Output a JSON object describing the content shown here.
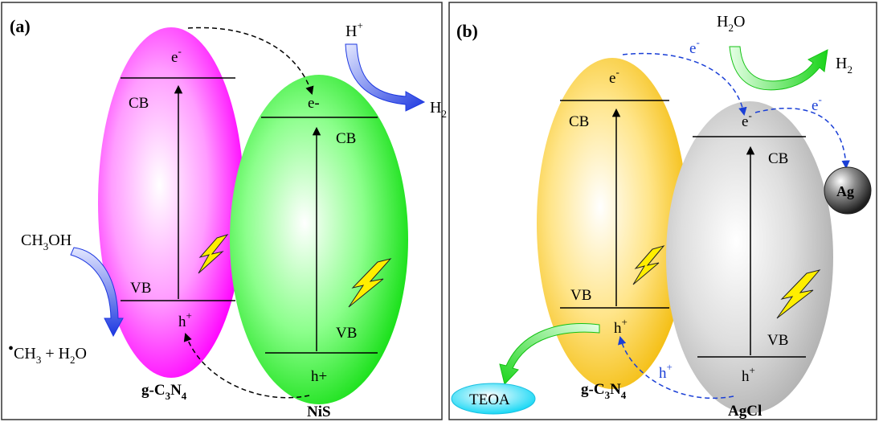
{
  "panel_a": {
    "tag": "(a)",
    "left_sc": {
      "name": "g-C3N4",
      "name_parts": {
        "base": "g-C",
        "sub1": "3",
        "mid": "N",
        "sub2": "4"
      },
      "cb": "CB",
      "vb": "VB",
      "electron": {
        "base": "e",
        "sup": "-"
      },
      "hole": {
        "base": "h",
        "sup": "+"
      },
      "color": "#ff00ff"
    },
    "right_sc": {
      "name": "NiS",
      "cb": "CB",
      "vb": "VB",
      "electron": "e-",
      "hole": "h+",
      "color": "#22ee22"
    },
    "reactant_top": {
      "base": "H",
      "sup": "+"
    },
    "product_top": {
      "base": "H",
      "sub": "2"
    },
    "reactant_left": {
      "p1": "CH",
      "sub": "3",
      "p2": "OH"
    },
    "product_left": {
      "dot": "•",
      "p1": "CH",
      "sub1": "3",
      "p2": " + H",
      "sub2": "2",
      "p3": "O"
    }
  },
  "panel_b": {
    "tag": "(b)",
    "left_sc": {
      "name": "g-C3N4",
      "name_parts": {
        "base": "g-C",
        "sub1": "3",
        "mid": "N",
        "sub2": "4"
      },
      "cb": "CB",
      "vb": "VB",
      "electron": {
        "base": "e",
        "sup": "-"
      },
      "hole": {
        "base": "h",
        "sup": "+"
      },
      "color": "#f5c518"
    },
    "right_sc": {
      "name": "AgCl",
      "cb": "CB",
      "vb": "VB",
      "electron": {
        "base": "e",
        "sup": "-"
      },
      "hole": {
        "base": "h",
        "sup": "+"
      },
      "color": "#bdbdbd"
    },
    "electron_labels": [
      {
        "base": "e",
        "sup": "-"
      },
      {
        "base": "e",
        "sup": "-"
      }
    ],
    "hole_label": {
      "base": "h",
      "sup": "+"
    },
    "reactant_top": {
      "base": "H",
      "sub": "2",
      "tail": "O"
    },
    "product_top": {
      "base": "H",
      "sub": "2"
    },
    "ag_label": "Ag",
    "teoa_label": "TEOA"
  }
}
